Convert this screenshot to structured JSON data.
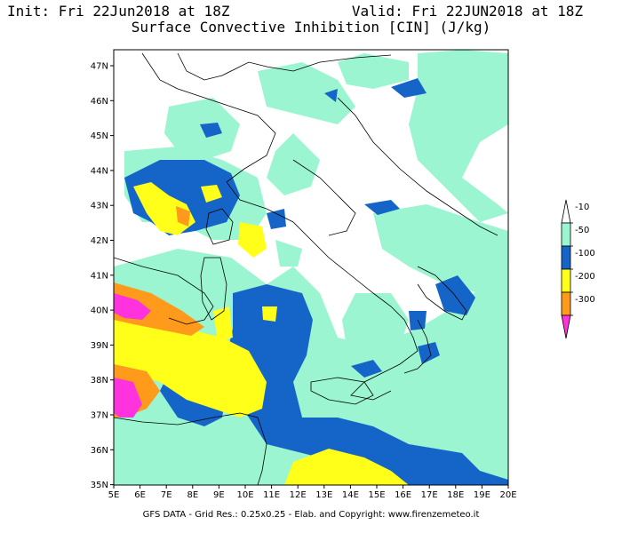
{
  "header": {
    "init": "Init: Fri 22Jun2018 at 18Z",
    "valid": "Valid: Fri 22JUN2018 at 18Z",
    "title": "Surface Convective Inhibition [CIN] (J/kg)"
  },
  "axes": {
    "lat_labels": [
      "47N",
      "46N",
      "45N",
      "44N",
      "43N",
      "42N",
      "41N",
      "40N",
      "39N",
      "38N",
      "37N",
      "36N",
      "35N"
    ],
    "lon_labels": [
      "5E",
      "6E",
      "7E",
      "8E",
      "9E",
      "10E",
      "11E",
      "12E",
      "13E",
      "14E",
      "15E",
      "16E",
      "17E",
      "18E",
      "19E",
      "20E"
    ]
  },
  "legend": {
    "levels": [
      {
        "label": "-10",
        "color": "#ffffff"
      },
      {
        "label": "-50",
        "color": "#9af5d0"
      },
      {
        "label": "-100",
        "color": "#1565c8"
      },
      {
        "label": "-200",
        "color": "#ffff1a"
      },
      {
        "label": "-300",
        "color": "#ff9a1a"
      },
      {
        "label": "",
        "color": "#ff33dd"
      }
    ]
  },
  "footer": {
    "credit": "GFS DATA - Grid Res.: 0.25x0.25 - Elab. and Copyright: www.firenzemeteo.it"
  }
}
